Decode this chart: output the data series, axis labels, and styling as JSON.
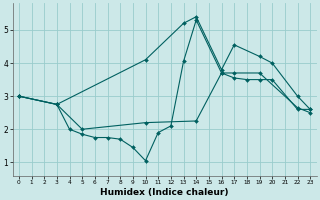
{
  "xlabel": "Humidex (Indice chaleur)",
  "ylabel": "",
  "xlim": [
    -0.5,
    23.5
  ],
  "ylim": [
    0.6,
    5.8
  ],
  "yticks": [
    1,
    2,
    3,
    4,
    5
  ],
  "xticks": [
    0,
    1,
    2,
    3,
    4,
    5,
    6,
    7,
    8,
    9,
    10,
    11,
    12,
    13,
    14,
    15,
    16,
    17,
    18,
    19,
    20,
    21,
    22,
    23
  ],
  "background_color": "#cce8e8",
  "grid_color": "#99cccc",
  "line_color": "#006060",
  "line1_x": [
    0,
    3,
    10,
    13,
    14,
    16,
    17,
    19,
    20,
    22,
    23
  ],
  "line1_y": [
    3.0,
    2.75,
    4.1,
    5.2,
    5.4,
    3.8,
    4.55,
    4.2,
    4.0,
    3.0,
    2.6
  ],
  "line2_x": [
    0,
    3,
    4,
    5,
    6,
    7,
    8,
    9,
    10,
    11,
    12,
    13,
    14,
    16,
    17,
    18,
    19,
    20,
    22,
    23
  ],
  "line2_y": [
    3.0,
    2.75,
    2.0,
    1.85,
    1.75,
    1.75,
    1.7,
    1.45,
    1.05,
    1.9,
    2.1,
    4.05,
    5.3,
    3.7,
    3.55,
    3.5,
    3.5,
    3.5,
    2.6,
    2.6
  ],
  "line3_x": [
    0,
    3,
    5,
    10,
    14,
    16,
    17,
    19,
    22,
    23
  ],
  "line3_y": [
    3.0,
    2.75,
    2.0,
    2.2,
    2.25,
    3.7,
    3.7,
    3.7,
    2.65,
    2.5
  ]
}
